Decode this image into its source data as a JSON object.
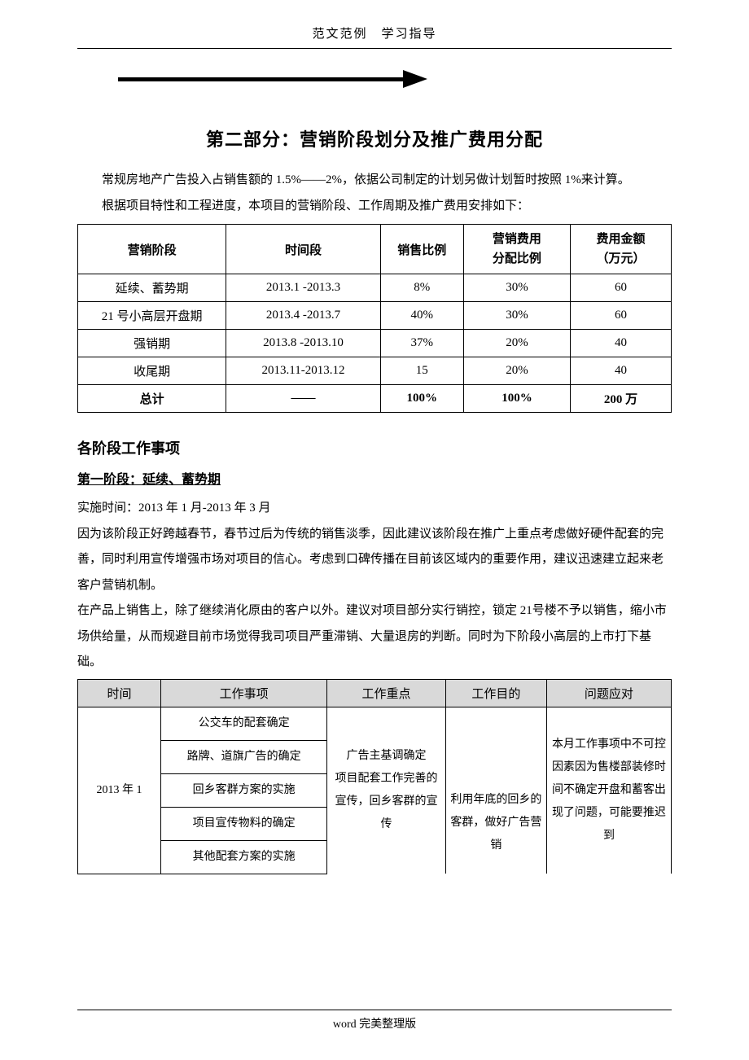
{
  "header": {
    "text": "范文范例　学习指导"
  },
  "section_title": "第二部分：营销阶段划分及推广费用分配",
  "intro": {
    "p1": "常规房地产广告投入占销售额的 1.5%——2%，依据公司制定的计划另做计划暂时按照 1%来计算。",
    "p2": "根据项目特性和工程进度，本项目的营销阶段、工作周期及推广费用安排如下："
  },
  "phase_table": {
    "columns": [
      "营销阶段",
      "时间段",
      "销售比例",
      "营销费用\n分配比例",
      "费用金额\n（万元）"
    ],
    "col_widths": [
      "25%",
      "26%",
      "14%",
      "18%",
      "17%"
    ],
    "rows": [
      [
        "延续、蓄势期",
        "2013.1 -2013.3",
        "8%",
        "30%",
        "60"
      ],
      [
        "21 号小高层开盘期",
        "2013.4 -2013.7",
        "40%",
        "30%",
        "60"
      ],
      [
        "强销期",
        "2013.8 -2013.10",
        "37%",
        "20%",
        "40"
      ],
      [
        "收尾期",
        "2013.11-2013.12",
        "15",
        "20%",
        "40"
      ],
      [
        "总计",
        "——",
        "100%",
        "100%",
        "200 万"
      ]
    ]
  },
  "sub_title": "各阶段工作事项",
  "phase1": {
    "heading": "第一阶段：延续、蓄势期",
    "time": "实施时间：2013 年 1 月-2013 年 3 月",
    "para1": "因为该阶段正好跨越春节，春节过后为传统的销售淡季，因此建议该阶段在推广上重点考虑做好硬件配套的完善，同时利用宣传增强市场对项目的信心。考虑到口碑传播在目前该区域内的重要作用，建议迅速建立起来老客户营销机制。",
    "para2": "在产品上销售上，除了继续消化原由的客户以外。建议对项目部分实行销控，锁定 21号楼不予以销售，缩小市场供给量，从而规避目前市场觉得我司项目严重滞销、大量退房的判断。同时为下阶段小高层的上市打下基础。"
  },
  "work_table": {
    "columns": [
      "时间",
      "工作事项",
      "工作重点",
      "工作目的",
      "问题应对"
    ],
    "col_widths": [
      "14%",
      "28%",
      "20%",
      "17%",
      "21%"
    ],
    "time_cell": "2013 年 1",
    "items": [
      "公交车的配套确定",
      "路牌、道旗广告的确定",
      "回乡客群方案的实施",
      "项目宣传物料的确定",
      "其他配套方案的实施"
    ],
    "focus": "广告主基调确定\n项目配套工作完善的宣传，回乡客群的宣传",
    "purpose": "利用年底的回乡的客群，做好广告营销",
    "response": "本月工作事项中不可控因素因为售楼部装修时间不确定开盘和蓄客出现了问题，可能要推迟到"
  },
  "footer": {
    "text": "word 完美整理版"
  }
}
